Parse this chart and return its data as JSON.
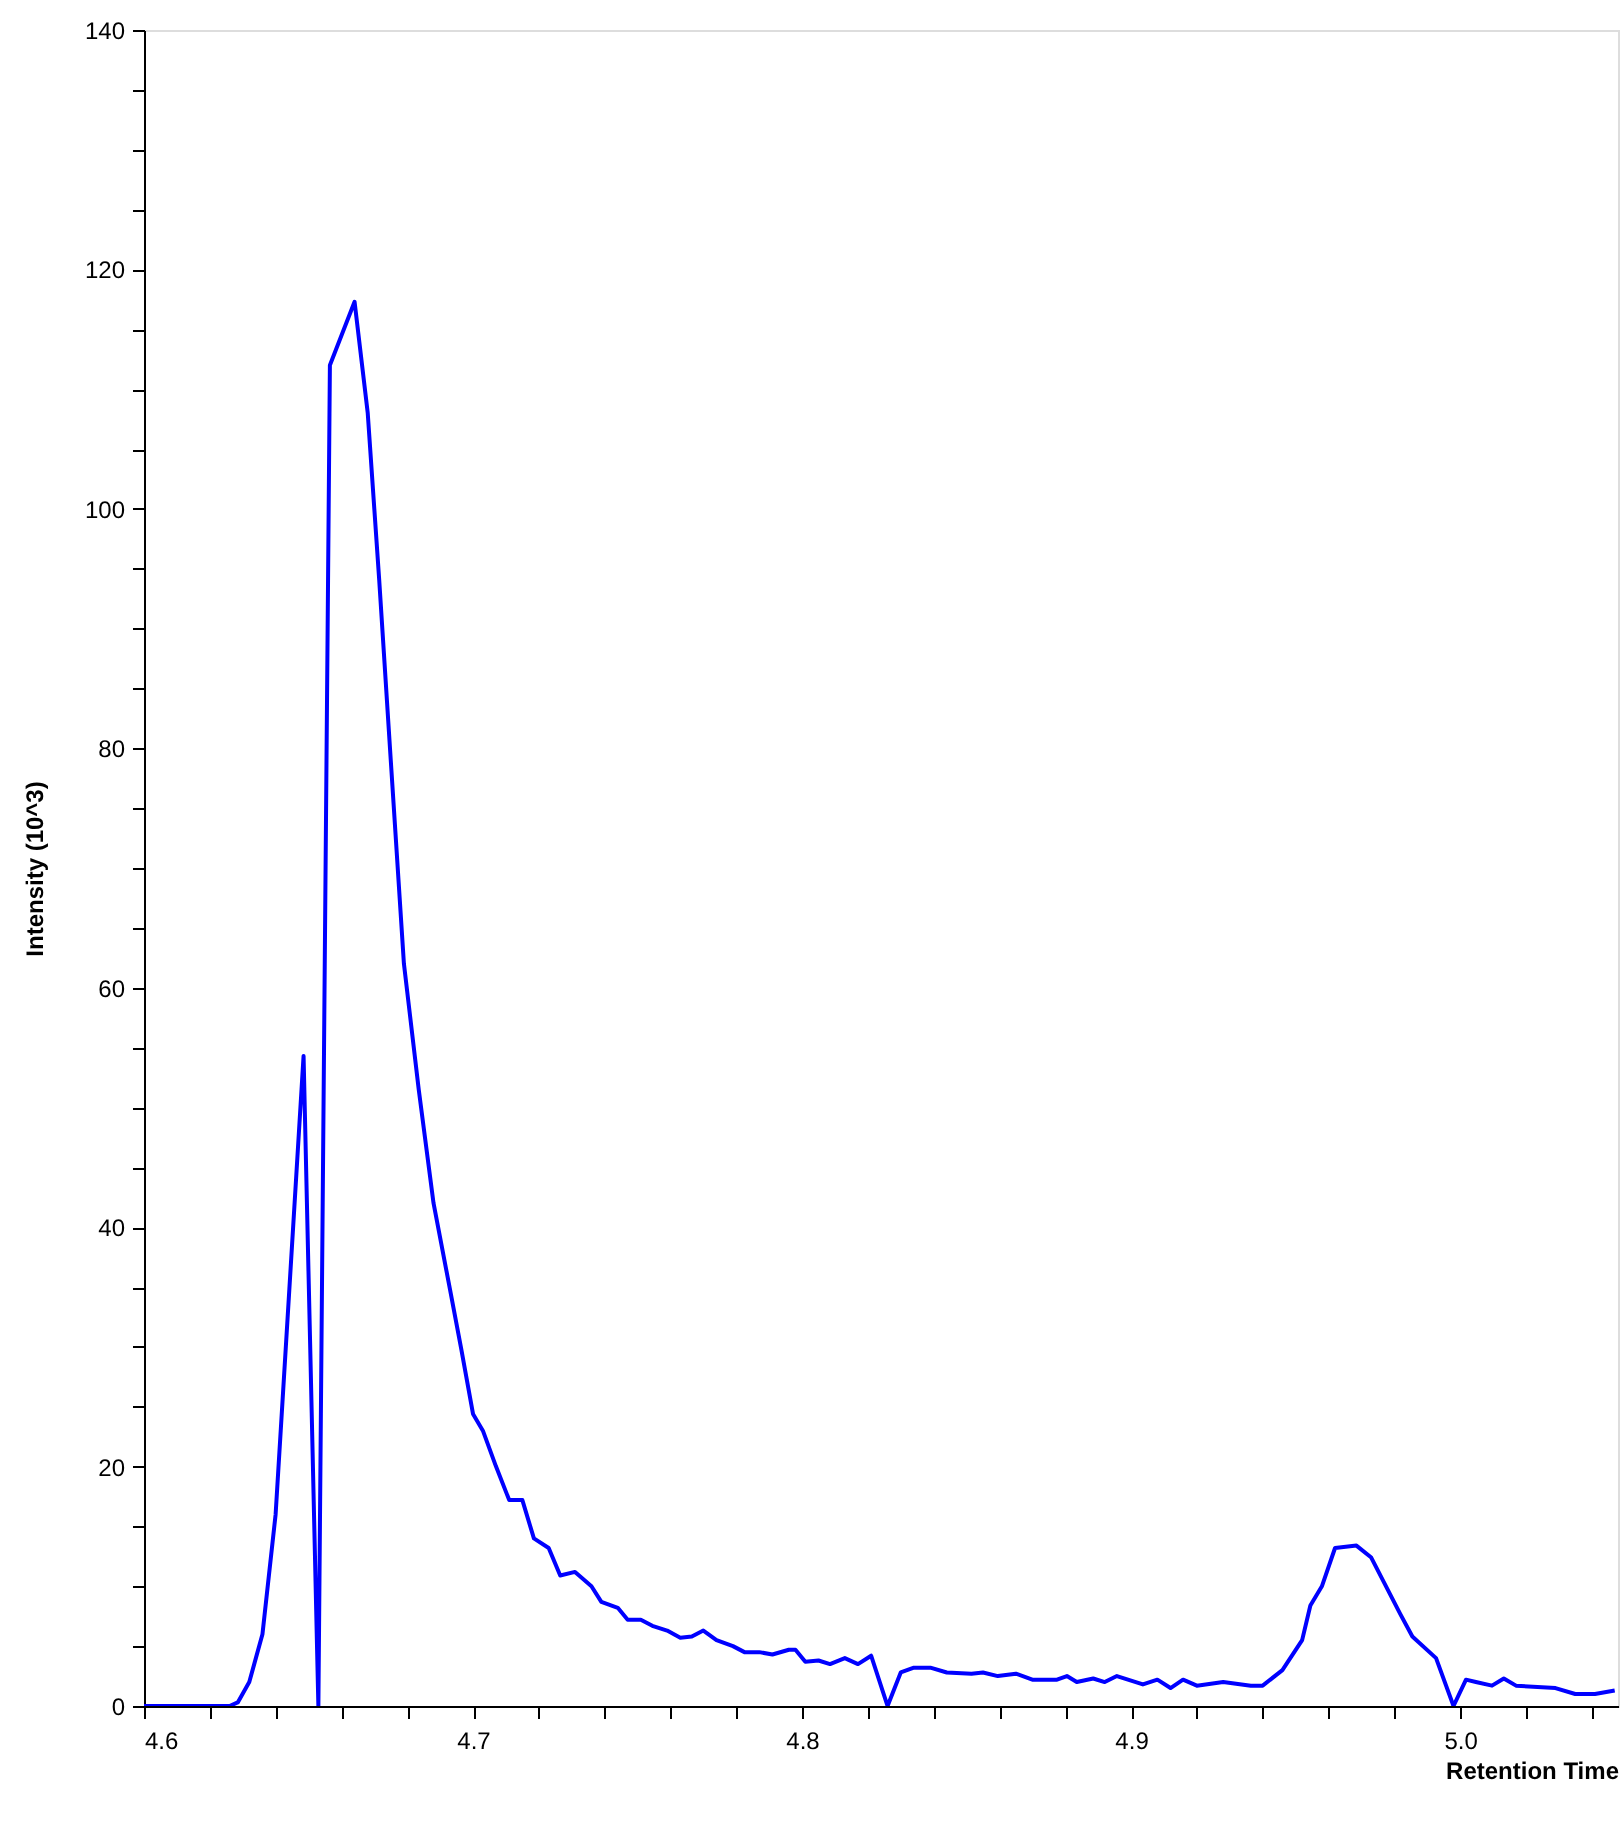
{
  "chart_data": {
    "type": "line",
    "xlabel": "Retention Time",
    "ylabel": "Intensity (10^3)",
    "xlim": [
      4.6,
      5.048
    ],
    "ylim": [
      0,
      140
    ],
    "xticks": [
      {
        "value": 4.6,
        "label": "4.6"
      },
      {
        "value": 4.62,
        "label": null
      },
      {
        "value": 4.64,
        "label": null
      },
      {
        "value": 4.66,
        "label": null
      },
      {
        "value": 4.68,
        "label": null
      },
      {
        "value": 4.7,
        "label": "4.7"
      },
      {
        "value": 4.72,
        "label": null
      },
      {
        "value": 4.74,
        "label": null
      },
      {
        "value": 4.76,
        "label": null
      },
      {
        "value": 4.78,
        "label": null
      },
      {
        "value": 4.8,
        "label": "4.8"
      },
      {
        "value": 4.82,
        "label": null
      },
      {
        "value": 4.84,
        "label": null
      },
      {
        "value": 4.86,
        "label": null
      },
      {
        "value": 4.88,
        "label": null
      },
      {
        "value": 4.9,
        "label": "4.9"
      },
      {
        "value": 4.92,
        "label": null
      },
      {
        "value": 4.94,
        "label": null
      },
      {
        "value": 4.96,
        "label": null
      },
      {
        "value": 4.98,
        "label": null
      },
      {
        "value": 5.0,
        "label": "5.0"
      },
      {
        "value": 5.02,
        "label": null
      },
      {
        "value": 5.04,
        "label": null
      }
    ],
    "yticks": [
      0,
      {
        "value": 5,
        "label": null
      },
      {
        "value": 10,
        "label": null
      },
      {
        "value": 15,
        "label": null
      },
      20,
      {
        "value": 25,
        "label": null
      },
      {
        "value": 30,
        "label": null
      },
      {
        "value": 35,
        "label": null
      },
      40,
      {
        "value": 45,
        "label": null
      },
      {
        "value": 50,
        "label": null
      },
      {
        "value": 55,
        "label": null
      },
      60,
      {
        "value": 65,
        "label": null
      },
      {
        "value": 70,
        "label": null
      },
      {
        "value": 75,
        "label": null
      },
      80,
      {
        "value": 85,
        "label": null
      },
      {
        "value": 90,
        "label": null
      },
      {
        "value": 95,
        "label": null
      },
      100,
      {
        "value": 105,
        "label": null
      },
      {
        "value": 110,
        "label": null
      },
      {
        "value": 115,
        "label": null
      },
      120,
      {
        "value": 125,
        "label": null
      },
      {
        "value": 130,
        "label": null
      },
      {
        "value": 135,
        "label": null
      },
      140
    ],
    "grid": false,
    "marker": "none",
    "line_style": "solid",
    "series": [
      {
        "color": "#0000ff",
        "x": [
          4.6,
          4.626,
          4.6285,
          4.632,
          4.636,
          4.64,
          4.6485,
          4.653,
          4.6565,
          4.664,
          4.668,
          4.6715,
          4.675,
          4.679,
          4.6835,
          4.688,
          4.693,
          4.6965,
          4.7,
          4.703,
          4.707,
          4.711,
          4.715,
          4.7185,
          4.723,
          4.7265,
          4.731,
          4.736,
          4.739,
          4.744,
          4.747,
          4.751,
          4.7545,
          4.759,
          4.763,
          4.7665,
          4.77,
          4.774,
          4.779,
          4.7825,
          4.787,
          4.791,
          4.796,
          4.798,
          4.801,
          4.805,
          4.8085,
          4.813,
          4.817,
          4.821,
          4.826,
          4.83,
          4.834,
          4.839,
          4.844,
          4.8515,
          4.855,
          4.8595,
          4.865,
          4.87,
          4.8775,
          4.8805,
          4.8835,
          4.8885,
          4.892,
          4.8957,
          4.9036,
          4.908,
          4.912,
          4.9158,
          4.92,
          4.928,
          4.9364,
          4.94,
          4.946,
          4.952,
          4.9545,
          4.958,
          4.962,
          4.9685,
          4.973,
          4.9818,
          4.9855,
          4.9927,
          4.998,
          5.0018,
          5.0048,
          5.0097,
          5.0133,
          5.017,
          5.029,
          5.035,
          5.041,
          5.047
        ],
        "values": [
          0,
          0,
          0.3,
          2,
          6,
          16,
          54.3,
          0,
          112,
          117.3,
          108,
          94,
          79,
          62,
          51.5,
          42,
          34.8,
          29.7,
          24.4,
          23,
          20,
          17.2,
          17.2,
          14,
          13.2,
          10.9,
          11.2,
          10,
          8.7,
          8.2,
          7.2,
          7.2,
          6.7,
          6.3,
          5.7,
          5.8,
          6.3,
          5.5,
          5.0,
          4.5,
          4.5,
          4.3,
          4.7,
          4.7,
          3.7,
          3.8,
          3.5,
          4.0,
          3.5,
          4.2,
          0,
          2.8,
          3.2,
          3.2,
          2.8,
          2.7,
          2.8,
          2.5,
          2.7,
          2.2,
          2.2,
          2.5,
          2.0,
          2.3,
          2.0,
          2.5,
          1.8,
          2.2,
          1.5,
          2.2,
          1.7,
          2.0,
          1.7,
          1.7,
          3.0,
          5.5,
          8.4,
          10,
          13.2,
          13.4,
          12.4,
          7.7,
          5.8,
          4.0,
          0,
          2.2,
          2.0,
          1.7,
          2.3,
          1.7,
          1.5,
          1.0,
          1.0,
          1.3
        ]
      }
    ]
  }
}
